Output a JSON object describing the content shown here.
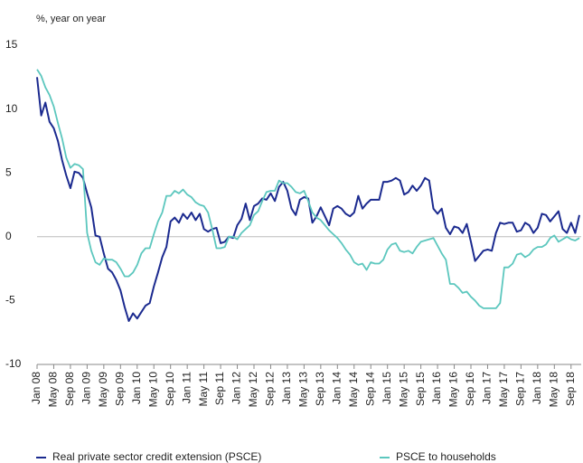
{
  "chart_data": {
    "type": "line",
    "y_label": "%, year on year",
    "categories": [
      "Jan 08",
      null,
      null,
      null,
      "May 08",
      null,
      null,
      null,
      "Sep 08",
      null,
      null,
      null,
      "Jan 09",
      null,
      null,
      null,
      "May 09",
      null,
      null,
      null,
      "Sep 09",
      null,
      null,
      null,
      "Jan 10",
      null,
      null,
      null,
      "May 10",
      null,
      null,
      null,
      "Sep 10",
      null,
      null,
      null,
      "Jan 11",
      null,
      null,
      null,
      "May 11",
      null,
      null,
      null,
      "Sep 11",
      null,
      null,
      null,
      "Jan 12",
      null,
      null,
      null,
      "May 12",
      null,
      null,
      null,
      "Sep 12",
      null,
      null,
      null,
      "Jan 13",
      null,
      null,
      null,
      "May 13",
      null,
      null,
      null,
      "Sep 13",
      null,
      null,
      null,
      "Jan 14",
      null,
      null,
      null,
      "May 14",
      null,
      null,
      null,
      "Sep 14",
      null,
      null,
      null,
      "Jan 15",
      null,
      null,
      null,
      "May 15",
      null,
      null,
      null,
      "Sep 15",
      null,
      null,
      null,
      "Jan 16",
      null,
      null,
      null,
      "May 16",
      null,
      null,
      null,
      "Sep 16",
      null,
      null,
      null,
      "Jan 17",
      null,
      null,
      null,
      "May 17",
      null,
      null,
      null,
      "Sep 17",
      null,
      null,
      null,
      "Jan 18",
      null,
      null,
      null,
      "May 18",
      null,
      null,
      null,
      "Sep 18",
      null,
      null
    ],
    "series": [
      {
        "name": "Real private sector credit extension (PSCE)",
        "color": "#1b2a8f",
        "values": [
          12.5,
          9.5,
          10.5,
          9,
          8.5,
          7.5,
          6,
          4.8,
          3.8,
          5.1,
          5,
          4.6,
          3.4,
          2.3,
          0.1,
          0,
          -1.3,
          -2.5,
          -2.8,
          -3.4,
          -4.2,
          -5.5,
          -6.6,
          -6,
          -6.4,
          -5.9,
          -5.4,
          -5.2,
          -3.9,
          -2.8,
          -1.6,
          -0.8,
          1.2,
          1.5,
          1.1,
          1.8,
          1.4,
          1.9,
          1.3,
          1.8,
          0.6,
          0.4,
          0.6,
          0.7,
          -0.5,
          -0.4,
          0,
          -0.1,
          0.9,
          1.4,
          2.6,
          1.3,
          2.4,
          2.6,
          3,
          2.9,
          3.4,
          2.8,
          3.9,
          4.3,
          3.6,
          2.2,
          1.7,
          2.9,
          3.1,
          3,
          1.1,
          1.6,
          2.3,
          1.6,
          0.9,
          2.2,
          2.4,
          2.2,
          1.8,
          1.6,
          1.9,
          3.2,
          2.2,
          2.6,
          2.9,
          2.9,
          2.9,
          4.3,
          4.3,
          4.4,
          4.6,
          4.4,
          3.3,
          3.5,
          4,
          3.6,
          4,
          4.6,
          4.4,
          2.2,
          1.8,
          2.2,
          0.7,
          0.2,
          0.8,
          0.7,
          0.3,
          1,
          -0.4,
          -1.9,
          -1.5,
          -1.1,
          -1,
          -1.1,
          0.3,
          1.1,
          1,
          1.1,
          1.1,
          0.4,
          0.5,
          1.1,
          0.9,
          0.3,
          0.7,
          1.8,
          1.7,
          1.2,
          1.6,
          2,
          0.6,
          0.3,
          1.1,
          0.3,
          1.7
        ]
      },
      {
        "name": "PSCE to households",
        "color": "#5cc7be",
        "values": [
          13.1,
          12.6,
          11.7,
          11.1,
          10.2,
          8.9,
          7.7,
          6.2,
          5.4,
          5.7,
          5.6,
          5.3,
          0.3,
          -1.1,
          -2,
          -2.2,
          -1.7,
          -1.8,
          -1.8,
          -2,
          -2.5,
          -3.1,
          -3.1,
          -2.8,
          -2.2,
          -1.3,
          -0.9,
          -0.9,
          0.2,
          1.2,
          1.9,
          3.2,
          3.2,
          3.6,
          3.4,
          3.7,
          3.3,
          3.1,
          2.7,
          2.5,
          2.4,
          1.9,
          0.6,
          -0.9,
          -0.9,
          -0.8,
          0,
          0,
          -0.2,
          0.3,
          0.6,
          0.9,
          1.7,
          2,
          2.8,
          3.5,
          3.6,
          3.6,
          4.4,
          4.2,
          4.2,
          3.9,
          3.5,
          3.4,
          3.6,
          2.8,
          1.9,
          1.5,
          1.3,
          0.9,
          0.5,
          0.2,
          -0.1,
          -0.5,
          -1,
          -1.4,
          -2,
          -2.2,
          -2.1,
          -2.6,
          -2,
          -2.1,
          -2.1,
          -1.8,
          -1,
          -0.6,
          -0.5,
          -1.1,
          -1.2,
          -1.1,
          -1.3,
          -0.8,
          -0.4,
          -0.3,
          -0.2,
          -0.1,
          -0.7,
          -1.3,
          -1.8,
          -3.7,
          -3.7,
          -4,
          -4.4,
          -4.3,
          -4.7,
          -5,
          -5.4,
          -5.6,
          -5.6,
          -5.6,
          -5.6,
          -5.2,
          -2.4,
          -2.4,
          -2.1,
          -1.4,
          -1.3,
          -1.6,
          -1.4,
          -1,
          -0.8,
          -0.8,
          -0.6,
          -0.1,
          0.1,
          -0.4,
          -0.2,
          0,
          -0.2,
          -0.3,
          -0.1
        ]
      }
    ],
    "ylim": [
      -10,
      15
    ],
    "yticks": [
      -10,
      -5,
      0,
      5,
      10,
      15
    ],
    "legend": "bottom"
  }
}
